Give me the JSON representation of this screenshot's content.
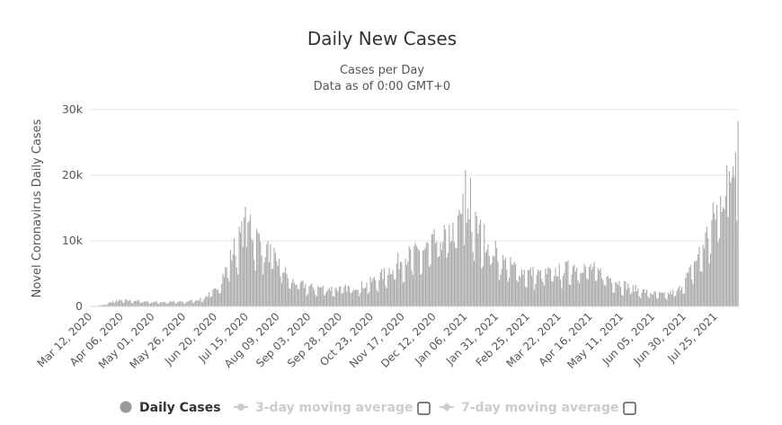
{
  "chart_data": {
    "type": "bar",
    "title": "Daily New Cases",
    "subtitle": "Cases per Day",
    "subtitle2": "Data as of 0:00 GMT+0",
    "ylabel": "Novel Coronavirus Daily Cases",
    "xlabel": "",
    "ylim": [
      0,
      30000
    ],
    "yticks": [
      0,
      10000,
      20000,
      30000
    ],
    "ytick_labels": [
      "0",
      "10k",
      "20k",
      "30k"
    ],
    "grid": true,
    "start_date": "2020-03-12",
    "days": 519,
    "xtick_labels": [
      "Mar 12, 2020",
      "Apr 06, 2020",
      "May 01, 2020",
      "May 26, 2020",
      "Jun 20, 2020",
      "Jul 15, 2020",
      "Aug 09, 2020",
      "Sep 03, 2020",
      "Sep 28, 2020",
      "Oct 23, 2020",
      "Nov 17, 2020",
      "Dec 12, 2020",
      "Jan 06, 2021",
      "Jan 31, 2021",
      "Feb 25, 2021",
      "Mar 22, 2021",
      "Apr 16, 2021",
      "May 11, 2021",
      "Jun 05, 2021",
      "Jun 30, 2021",
      "Jul 25, 2021"
    ],
    "xtick_step_days": 25,
    "bar_color": "#a8a8a8",
    "trend_anchors": [
      {
        "day": 0,
        "value": 0
      },
      {
        "day": 10,
        "value": 200
      },
      {
        "day": 20,
        "value": 900
      },
      {
        "day": 35,
        "value": 900
      },
      {
        "day": 50,
        "value": 700
      },
      {
        "day": 75,
        "value": 700
      },
      {
        "day": 90,
        "value": 1200
      },
      {
        "day": 100,
        "value": 2500
      },
      {
        "day": 108,
        "value": 5500
      },
      {
        "day": 115,
        "value": 9000
      },
      {
        "day": 122,
        "value": 11500
      },
      {
        "day": 126,
        "value": 12500
      },
      {
        "day": 130,
        "value": 11500
      },
      {
        "day": 140,
        "value": 9000
      },
      {
        "day": 150,
        "value": 7000
      },
      {
        "day": 160,
        "value": 4000
      },
      {
        "day": 175,
        "value": 3000
      },
      {
        "day": 200,
        "value": 2700
      },
      {
        "day": 220,
        "value": 3300
      },
      {
        "day": 235,
        "value": 5000
      },
      {
        "day": 250,
        "value": 7500
      },
      {
        "day": 265,
        "value": 8500
      },
      {
        "day": 280,
        "value": 10500
      },
      {
        "day": 290,
        "value": 11500
      },
      {
        "day": 298,
        "value": 15000
      },
      {
        "day": 302,
        "value": 14000
      },
      {
        "day": 310,
        "value": 12000
      },
      {
        "day": 320,
        "value": 9500
      },
      {
        "day": 330,
        "value": 7000
      },
      {
        "day": 345,
        "value": 5500
      },
      {
        "day": 360,
        "value": 5000
      },
      {
        "day": 375,
        "value": 5500
      },
      {
        "day": 390,
        "value": 6500
      },
      {
        "day": 400,
        "value": 6000
      },
      {
        "day": 410,
        "value": 5000
      },
      {
        "day": 425,
        "value": 3500
      },
      {
        "day": 440,
        "value": 2500
      },
      {
        "day": 450,
        "value": 2000
      },
      {
        "day": 460,
        "value": 1800
      },
      {
        "day": 470,
        "value": 2500
      },
      {
        "day": 480,
        "value": 5500
      },
      {
        "day": 490,
        "value": 9500
      },
      {
        "day": 498,
        "value": 13500
      },
      {
        "day": 505,
        "value": 17000
      },
      {
        "day": 512,
        "value": 20000
      },
      {
        "day": 518,
        "value": 27500
      }
    ],
    "peaks": [
      {
        "day": 124,
        "value": 15200
      },
      {
        "day": 128,
        "value": 14000
      },
      {
        "day": 300,
        "value": 20800
      },
      {
        "day": 304,
        "value": 19600
      },
      {
        "day": 509,
        "value": 21500
      },
      {
        "day": 516,
        "value": 23500
      },
      {
        "day": 518,
        "value": 28200
      }
    ]
  },
  "legend": {
    "items": [
      {
        "label": "Daily Cases",
        "color": "#333333"
      },
      {
        "label": "3-day moving average",
        "color": "#cccccc"
      },
      {
        "label": "7-day moving average",
        "color": "#cccccc"
      }
    ]
  }
}
